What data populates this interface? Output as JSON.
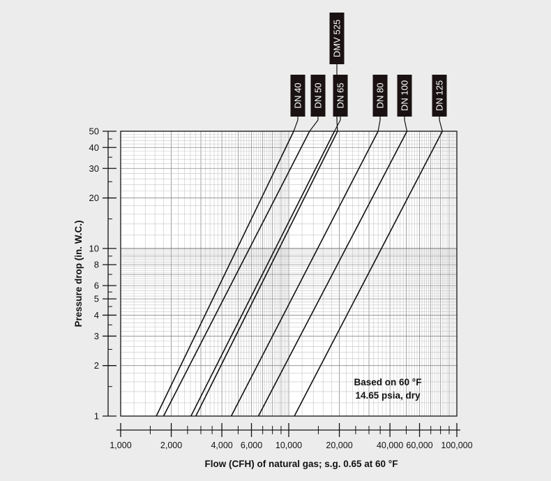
{
  "chart_data": {
    "type": "line",
    "title": "",
    "xlabel": "Flow (CFH) of natural gas; s.g. 0.65 at 60 °F",
    "ylabel": "Pressure drop (in. W.C.)",
    "x_scale": "log",
    "y_scale": "log",
    "xlim": [
      1000,
      100000
    ],
    "ylim": [
      1,
      50
    ],
    "grid": true,
    "x_ticks": [
      {
        "value": 1000,
        "label": "1,000"
      },
      {
        "value": 2000,
        "label": "2,000"
      },
      {
        "value": 4000,
        "label": "4,000"
      },
      {
        "value": 6000,
        "label": "6,000"
      },
      {
        "value": 10000,
        "label": "10,000"
      },
      {
        "value": 20000,
        "label": "20,000"
      },
      {
        "value": 40000,
        "label": "40,000"
      },
      {
        "value": 60000,
        "label": "60,000"
      },
      {
        "value": 100000,
        "label": "100,000"
      }
    ],
    "y_ticks": [
      {
        "value": 1,
        "label": "1"
      },
      {
        "value": 2,
        "label": "2"
      },
      {
        "value": 3,
        "label": "3"
      },
      {
        "value": 4,
        "label": "4"
      },
      {
        "value": 5,
        "label": "5"
      },
      {
        "value": 6,
        "label": "6"
      },
      {
        "value": 8,
        "label": "8"
      },
      {
        "value": 10,
        "label": "10"
      },
      {
        "value": 20,
        "label": "20"
      },
      {
        "value": 30,
        "label": "30"
      },
      {
        "value": 40,
        "label": "40"
      },
      {
        "value": 50,
        "label": "50"
      }
    ],
    "series": [
      {
        "name": "DN 40",
        "x": [
          1630,
          10700
        ],
        "y": [
          1,
          50
        ]
      },
      {
        "name": "DN 50",
        "x": [
          1800,
          13300
        ],
        "y": [
          1,
          50
        ]
      },
      {
        "name": "DN 65",
        "x": [
          2620,
          18700
        ],
        "y": [
          1,
          50
        ]
      },
      {
        "name": "DMV 525",
        "x": [
          2800,
          19500
        ],
        "y": [
          1,
          50
        ]
      },
      {
        "name": "DN 80",
        "x": [
          4550,
          34000
        ],
        "y": [
          1,
          50
        ]
      },
      {
        "name": "DN 100",
        "x": [
          6600,
          50500
        ],
        "y": [
          1,
          50
        ]
      },
      {
        "name": "DN 125",
        "x": [
          10800,
          82000
        ],
        "y": [
          1,
          50
        ]
      }
    ],
    "annotations": [
      "Based on 60 °F",
      "14.65 psia, dry"
    ]
  }
}
